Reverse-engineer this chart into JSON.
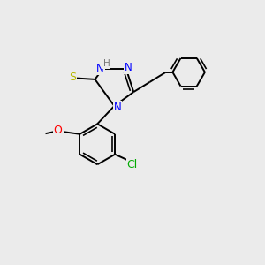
{
  "bg_color": "#ebebeb",
  "bond_color": "#000000",
  "bond_width": 1.4,
  "figsize": [
    3.0,
    3.0
  ],
  "dpi": 100,
  "colors": {
    "N": "#0000ff",
    "S": "#b8b800",
    "O": "#ff0000",
    "Cl": "#00aa00",
    "H": "#777777",
    "C": "#000000"
  }
}
